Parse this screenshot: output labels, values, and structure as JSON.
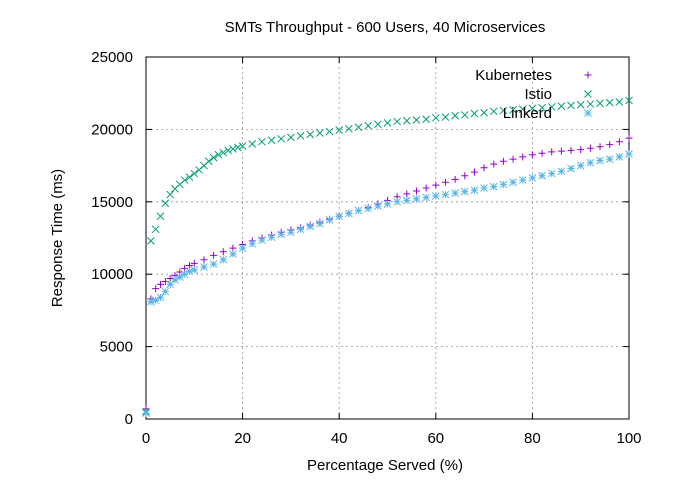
{
  "chart_data": {
    "type": "scatter",
    "title": "SMTs Throughput - 600 Users, 40 Microservices",
    "xlabel": "Percentage Served (%)",
    "ylabel": "Response Time (ms)",
    "xlim": [
      0,
      100
    ],
    "ylim": [
      0,
      25000
    ],
    "xticks": [
      "0",
      "20",
      "40",
      "60",
      "80",
      "100"
    ],
    "yticks": [
      "0",
      "5000",
      "10000",
      "15000",
      "20000",
      "25000"
    ],
    "grid": true,
    "legend_position": "top-right",
    "series": [
      {
        "name": "Kubernetes",
        "color": "#9400d3",
        "marker": "plus",
        "points": [
          [
            0,
            700
          ],
          [
            1,
            8300
          ],
          [
            2,
            9000
          ],
          [
            3,
            9300
          ],
          [
            4,
            9500
          ],
          [
            5,
            9700
          ],
          [
            6,
            9900
          ],
          [
            7,
            10150
          ],
          [
            8,
            10400
          ],
          [
            9,
            10600
          ],
          [
            10,
            10750
          ],
          [
            12,
            11000
          ],
          [
            14,
            11300
          ],
          [
            16,
            11550
          ],
          [
            18,
            11800
          ],
          [
            20,
            12050
          ],
          [
            22,
            12300
          ],
          [
            24,
            12500
          ],
          [
            26,
            12700
          ],
          [
            28,
            12900
          ],
          [
            30,
            13050
          ],
          [
            32,
            13200
          ],
          [
            34,
            13400
          ],
          [
            36,
            13600
          ],
          [
            38,
            13800
          ],
          [
            40,
            14000
          ],
          [
            42,
            14200
          ],
          [
            44,
            14400
          ],
          [
            46,
            14600
          ],
          [
            48,
            14850
          ],
          [
            50,
            15100
          ],
          [
            52,
            15350
          ],
          [
            54,
            15550
          ],
          [
            56,
            15750
          ],
          [
            58,
            15950
          ],
          [
            60,
            16150
          ],
          [
            62,
            16350
          ],
          [
            64,
            16550
          ],
          [
            66,
            16800
          ],
          [
            68,
            17050
          ],
          [
            70,
            17350
          ],
          [
            72,
            17600
          ],
          [
            74,
            17800
          ],
          [
            76,
            17950
          ],
          [
            78,
            18100
          ],
          [
            80,
            18250
          ],
          [
            82,
            18350
          ],
          [
            84,
            18450
          ],
          [
            86,
            18500
          ],
          [
            88,
            18550
          ],
          [
            90,
            18600
          ],
          [
            92,
            18700
          ],
          [
            94,
            18800
          ],
          [
            96,
            18950
          ],
          [
            98,
            19150
          ],
          [
            100,
            19400
          ]
        ]
      },
      {
        "name": "Istio",
        "color": "#009e73",
        "marker": "cross",
        "points": [
          [
            0,
            500
          ],
          [
            1,
            12300
          ],
          [
            2,
            13100
          ],
          [
            3,
            14000
          ],
          [
            4,
            14900
          ],
          [
            5,
            15500
          ],
          [
            6,
            15900
          ],
          [
            7,
            16200
          ],
          [
            8,
            16500
          ],
          [
            9,
            16700
          ],
          [
            10,
            16950
          ],
          [
            11,
            17200
          ],
          [
            12,
            17500
          ],
          [
            13,
            17800
          ],
          [
            14,
            18050
          ],
          [
            15,
            18250
          ],
          [
            16,
            18400
          ],
          [
            17,
            18550
          ],
          [
            18,
            18650
          ],
          [
            19,
            18750
          ],
          [
            20,
            18850
          ],
          [
            22,
            19000
          ],
          [
            24,
            19150
          ],
          [
            26,
            19250
          ],
          [
            28,
            19350
          ],
          [
            30,
            19450
          ],
          [
            32,
            19550
          ],
          [
            34,
            19650
          ],
          [
            36,
            19750
          ],
          [
            38,
            19850
          ],
          [
            40,
            19950
          ],
          [
            42,
            20050
          ],
          [
            44,
            20150
          ],
          [
            46,
            20250
          ],
          [
            48,
            20350
          ],
          [
            50,
            20450
          ],
          [
            52,
            20550
          ],
          [
            54,
            20600
          ],
          [
            56,
            20650
          ],
          [
            58,
            20700
          ],
          [
            60,
            20800
          ],
          [
            62,
            20850
          ],
          [
            64,
            20950
          ],
          [
            66,
            21000
          ],
          [
            68,
            21100
          ],
          [
            70,
            21150
          ],
          [
            72,
            21250
          ],
          [
            74,
            21300
          ],
          [
            76,
            21350
          ],
          [
            78,
            21400
          ],
          [
            80,
            21450
          ],
          [
            82,
            21500
          ],
          [
            84,
            21550
          ],
          [
            86,
            21600
          ],
          [
            88,
            21650
          ],
          [
            90,
            21700
          ],
          [
            92,
            21750
          ],
          [
            94,
            21800
          ],
          [
            96,
            21850
          ],
          [
            98,
            21900
          ],
          [
            100,
            22000
          ]
        ]
      },
      {
        "name": "Linkerd",
        "color": "#56b4e9",
        "marker": "star",
        "points": [
          [
            0,
            400
          ],
          [
            1,
            8100
          ],
          [
            2,
            8200
          ],
          [
            3,
            8400
          ],
          [
            4,
            8800
          ],
          [
            5,
            9300
          ],
          [
            6,
            9600
          ],
          [
            7,
            9800
          ],
          [
            8,
            10000
          ],
          [
            9,
            10200
          ],
          [
            10,
            10300
          ],
          [
            12,
            10500
          ],
          [
            14,
            10700
          ],
          [
            16,
            11000
          ],
          [
            18,
            11400
          ],
          [
            20,
            11800
          ],
          [
            22,
            12100
          ],
          [
            24,
            12350
          ],
          [
            26,
            12550
          ],
          [
            28,
            12750
          ],
          [
            30,
            12900
          ],
          [
            32,
            13100
          ],
          [
            34,
            13300
          ],
          [
            36,
            13500
          ],
          [
            38,
            13750
          ],
          [
            40,
            14000
          ],
          [
            42,
            14200
          ],
          [
            44,
            14400
          ],
          [
            46,
            14550
          ],
          [
            48,
            14700
          ],
          [
            50,
            14850
          ],
          [
            52,
            15000
          ],
          [
            54,
            15100
          ],
          [
            56,
            15200
          ],
          [
            58,
            15300
          ],
          [
            60,
            15400
          ],
          [
            62,
            15500
          ],
          [
            64,
            15600
          ],
          [
            66,
            15700
          ],
          [
            68,
            15800
          ],
          [
            70,
            15950
          ],
          [
            72,
            16050
          ],
          [
            74,
            16200
          ],
          [
            76,
            16350
          ],
          [
            78,
            16500
          ],
          [
            80,
            16650
          ],
          [
            82,
            16800
          ],
          [
            84,
            16950
          ],
          [
            86,
            17100
          ],
          [
            88,
            17300
          ],
          [
            90,
            17500
          ],
          [
            92,
            17700
          ],
          [
            94,
            17850
          ],
          [
            96,
            17950
          ],
          [
            98,
            18100
          ],
          [
            100,
            18300
          ]
        ]
      }
    ]
  }
}
